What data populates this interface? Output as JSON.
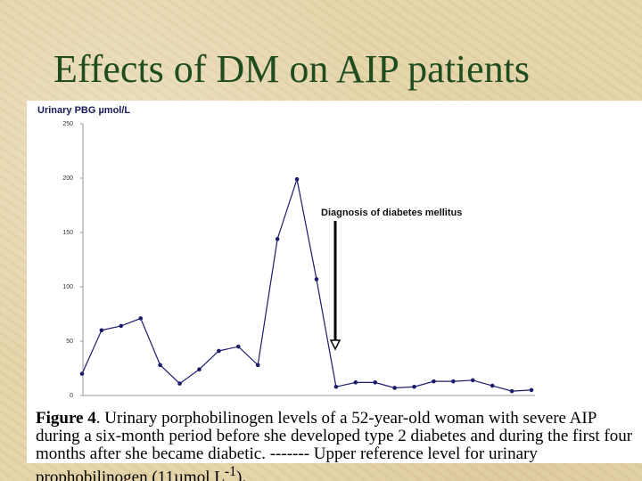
{
  "slide_title": "Effects of DM on AIP patients",
  "chart_data": {
    "type": "line",
    "y_axis_label": "Urinary PBG µmol/L",
    "annotation": "Diagnosis of diabetes mellitus",
    "categories": [
      null,
      null,
      null,
      null,
      null,
      null,
      null,
      null,
      null,
      null,
      null,
      null,
      null,
      null,
      null,
      null,
      null,
      null,
      null,
      null,
      null,
      null,
      null,
      null
    ],
    "series": [
      {
        "name": "Urinary PBG",
        "color": "#1c1c6b",
        "values": [
          20,
          60,
          64,
          71,
          28,
          11,
          24,
          41,
          45,
          28,
          144,
          199,
          107,
          8,
          12,
          12,
          7,
          8,
          13,
          13,
          14,
          9,
          4,
          5
        ]
      }
    ],
    "ylim": [
      0,
      250
    ],
    "yticks": [
      0,
      50,
      100,
      150,
      200,
      250
    ],
    "grid": false
  },
  "caption": {
    "label": "Figure 4",
    "text": ". Urinary porphobilinogen levels of a 52-year-old woman with severe AIP during a six-month period before she developed type 2 diabetes and during the first four months after she became diabetic. ------- Upper reference level for urinary prophobilinogen (11µmol L",
    "superscript": "-1",
    "end": ")."
  }
}
